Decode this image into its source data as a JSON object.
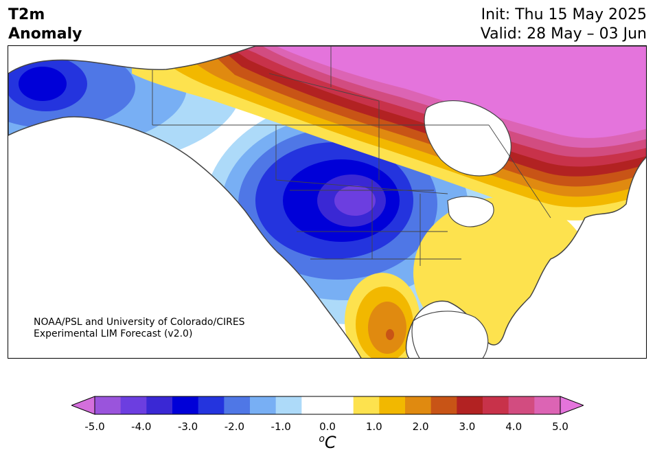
{
  "title": {
    "line1": "T2m",
    "line2": "Anomaly"
  },
  "dates": {
    "init": "Init: Thu 15 May 2025",
    "valid": "Valid: 28 May – 03 Jun"
  },
  "credit": {
    "line1": "NOAA/PSL and University of Colorado/CIRES",
    "line2": "Experimental LIM Forecast (v2.0)"
  },
  "colorbar": {
    "min": -5.0,
    "max": 5.0,
    "step": 0.5,
    "ticks": [
      "-5.0",
      "-4.0",
      "-3.0",
      "-2.0",
      "-1.0",
      "0.0",
      "1.0",
      "2.0",
      "3.0",
      "4.0",
      "5.0"
    ],
    "unit": "C",
    "unit_sup": "o",
    "colors": [
      "#9a54dc",
      "#6c3ee0",
      "#3a28d4",
      "#0000d8",
      "#2434de",
      "#4f77e6",
      "#78aff4",
      "#addaf9",
      "#ffffff",
      "#ffffff",
      "#fde24e",
      "#f2b800",
      "#e08a10",
      "#c85416",
      "#b22222",
      "#c8324a",
      "#d24c80",
      "#dc64b4"
    ],
    "under_color": "#d46fdc",
    "over_color": "#e474dc"
  },
  "map_colors": {
    "ocean": "#ffffff",
    "border": "#444444"
  }
}
